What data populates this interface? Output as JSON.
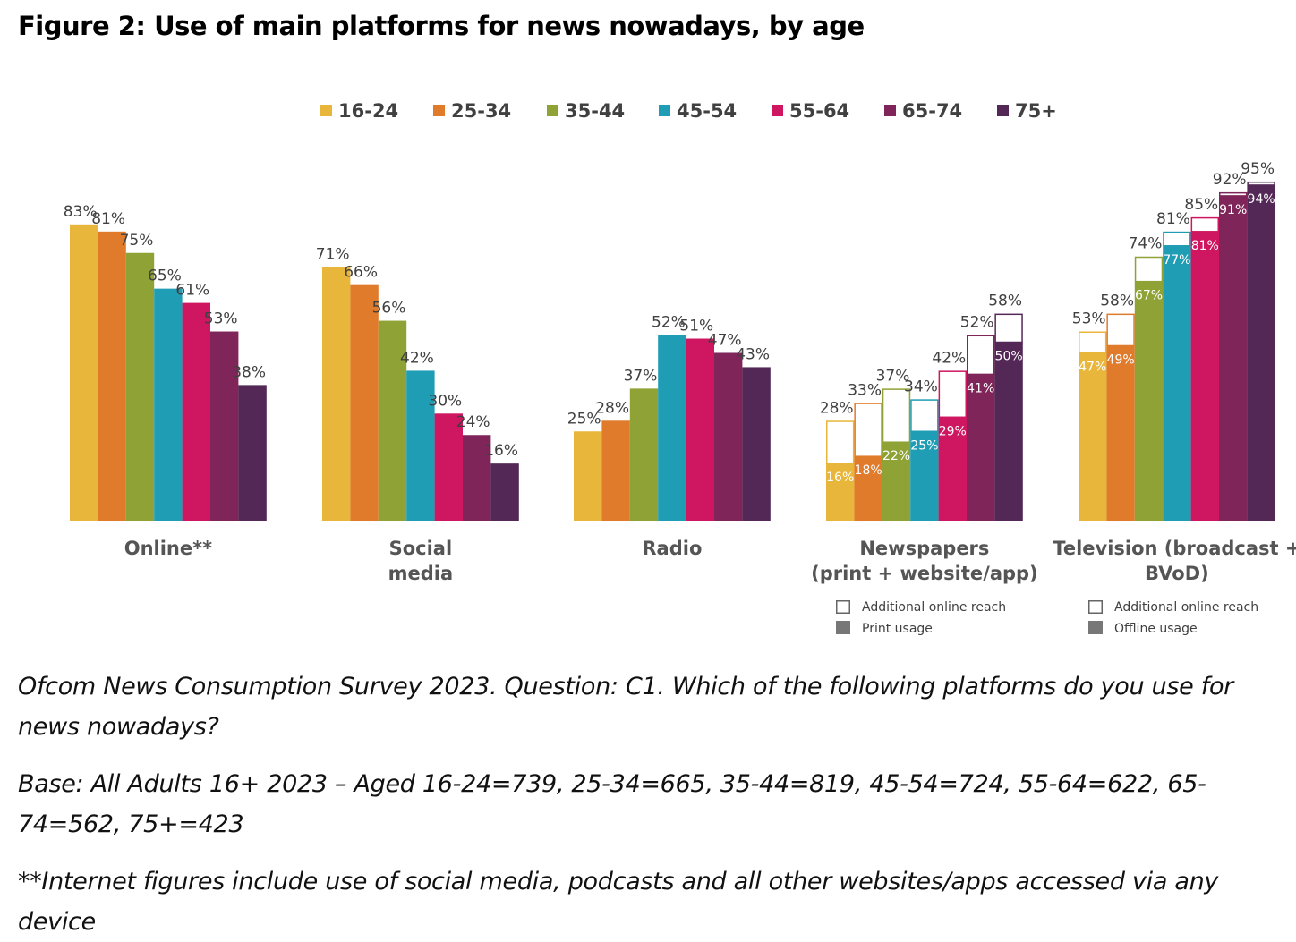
{
  "title": "Figure 2: Use of main platforms for news nowadays, by age",
  "chart_data": {
    "type": "bar",
    "ylim": [
      0,
      100
    ],
    "grid": false,
    "legend_position": "top",
    "series": [
      {
        "name": "16-24",
        "color": "#e8b63a"
      },
      {
        "name": "25-34",
        "color": "#e07b2c"
      },
      {
        "name": "35-44",
        "color": "#8ea236"
      },
      {
        "name": "45-54",
        "color": "#1f9db5"
      },
      {
        "name": "55-64",
        "color": "#cf1660"
      },
      {
        "name": "65-74",
        "color": "#7f2559"
      },
      {
        "name": "75+",
        "color": "#532856"
      }
    ],
    "categories": [
      {
        "label": [
          "Online**"
        ],
        "values": [
          83,
          81,
          75,
          65,
          61,
          53,
          38
        ]
      },
      {
        "label": [
          "Social",
          "media"
        ],
        "values": [
          71,
          66,
          56,
          42,
          30,
          24,
          16
        ]
      },
      {
        "label": [
          "Radio"
        ],
        "values": [
          25,
          28,
          37,
          52,
          51,
          47,
          43
        ]
      },
      {
        "label": [
          "Newspapers",
          "(print + website/app)"
        ],
        "values": [
          28,
          33,
          37,
          34,
          42,
          52,
          58
        ],
        "base_values": [
          16,
          18,
          22,
          25,
          29,
          41,
          50
        ],
        "sublegend": [
          "Additional online reach",
          "Print usage"
        ]
      },
      {
        "label": [
          "Television (broadcast +",
          "BVoD)"
        ],
        "values": [
          53,
          58,
          74,
          81,
          85,
          92,
          95
        ],
        "base_values": [
          47,
          49,
          67,
          77,
          81,
          91,
          94
        ],
        "sublegend": [
          "Additional online reach",
          "Offline usage"
        ]
      }
    ]
  },
  "notes": [
    "Ofcom News Consumption Survey 2023. Question: C1. Which of the following platforms do you use for news nowadays?",
    "Base: All Adults 16+ 2023 – Aged 16-24=739, 25-34=665, 35-44=819, 45-54=724, 55-64=622, 65-74=562, 75+=423",
    "**Internet figures include use of social media, podcasts and all other websites/apps accessed via any device"
  ]
}
